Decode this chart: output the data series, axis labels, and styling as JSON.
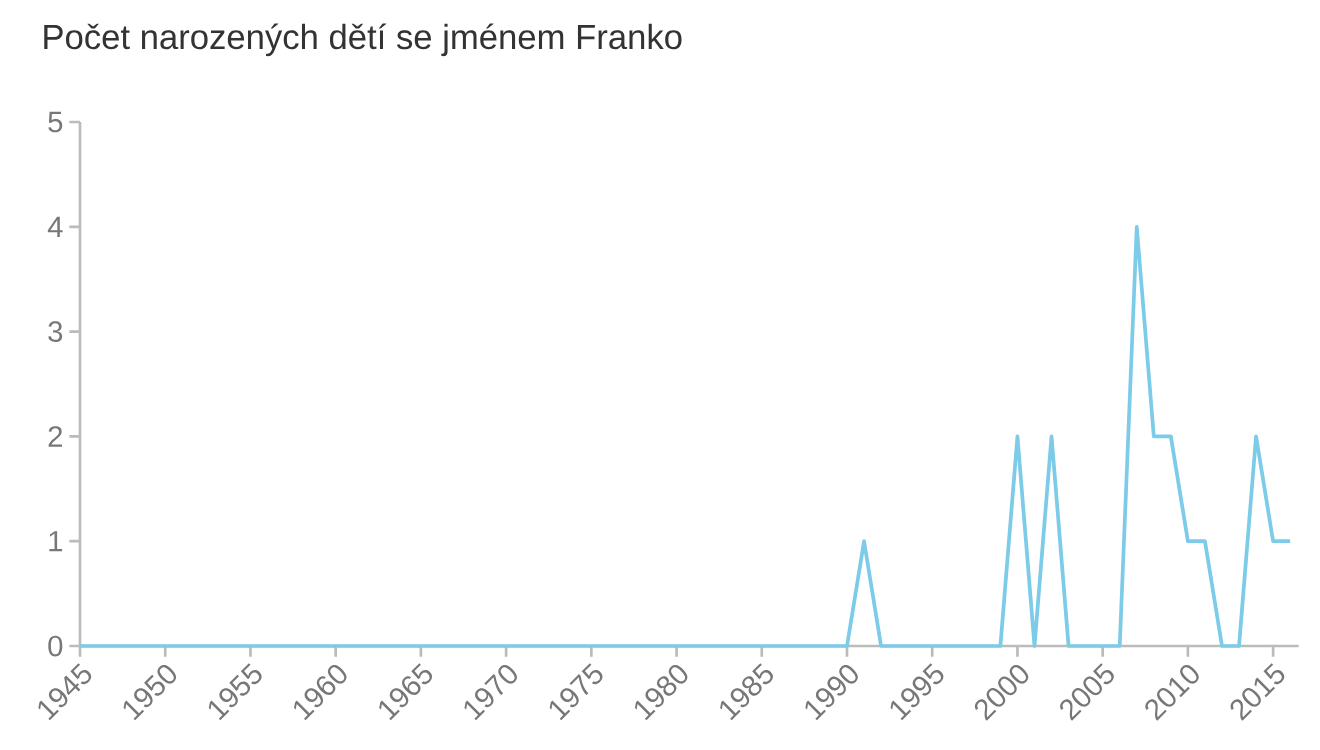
{
  "chart_data": {
    "type": "line",
    "title": "Počet narozených dětí se jménem Franko",
    "x": [
      1945,
      1990,
      1991,
      1992,
      1999,
      2000,
      2001,
      2002,
      2003,
      2006,
      2007,
      2008,
      2009,
      2010,
      2011,
      2012,
      2013,
      2014,
      2015,
      2016
    ],
    "series": [
      {
        "color": "#7ccbe8",
        "values": [
          0,
          0,
          1,
          0,
          0,
          2,
          0,
          2,
          0,
          0,
          4,
          2,
          2,
          1,
          1,
          0,
          0,
          2,
          1,
          1
        ]
      }
    ],
    "xlim": [
      1945,
      2016.5
    ],
    "xticks": [
      1945,
      1950,
      1955,
      1960,
      1965,
      1970,
      1975,
      1980,
      1985,
      1990,
      1995,
      2000,
      2005,
      2010,
      2015
    ],
    "ylim": [
      0,
      5
    ],
    "yticks": [
      0,
      1,
      2,
      3,
      4,
      5
    ],
    "grid": false,
    "marker": "none",
    "line_style": "solid"
  }
}
